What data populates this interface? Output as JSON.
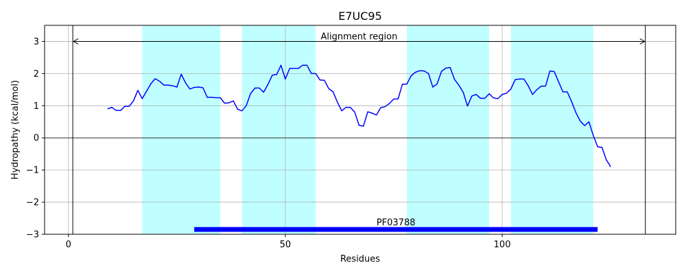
{
  "chart_data": {
    "type": "line",
    "title": "E7UC95",
    "xlabel": "Residues",
    "ylabel": "Hydropathy (kcal/mol)",
    "xlim": [
      -5.5,
      140
    ],
    "ylim": [
      -3,
      3.5
    ],
    "xticks": [
      0,
      50,
      100
    ],
    "yticks": [
      -3,
      -2,
      -1,
      0,
      1,
      2,
      3
    ],
    "ytick_labels": [
      "−3",
      "−2",
      "−1",
      "0",
      "1",
      "2",
      "3"
    ],
    "grid": true,
    "line_color": "#0000ff",
    "region_color": "#c0ffff",
    "domain_bar_color": "#0000ff",
    "series": [
      {
        "x": [
          9,
          10,
          11,
          12,
          13,
          14,
          15,
          16,
          17,
          18,
          19,
          20,
          21,
          22,
          23,
          24,
          25,
          26,
          27,
          28,
          29,
          30,
          31,
          32,
          33,
          34,
          35,
          36,
          37,
          38,
          39,
          40,
          41,
          42,
          43,
          44,
          45,
          46,
          47,
          48,
          49,
          50,
          51,
          52,
          53,
          54,
          55,
          56,
          57,
          58,
          59,
          60,
          61,
          62,
          63,
          64,
          65,
          66,
          67,
          68,
          69,
          70,
          71,
          72,
          73,
          74,
          75,
          76,
          77,
          78,
          79,
          80,
          81,
          82,
          83,
          84,
          85,
          86,
          87,
          88,
          89,
          90,
          91,
          92,
          93,
          94,
          95,
          96,
          97,
          98,
          99,
          100,
          101,
          102,
          103,
          104,
          105,
          106,
          107,
          108,
          109,
          110,
          111,
          112,
          113,
          114,
          115,
          116,
          117,
          118,
          119,
          120,
          121,
          122,
          123,
          124,
          125
        ],
        "y": [
          0.9,
          0.95,
          0.85,
          0.85,
          0.98,
          0.98,
          1.15,
          1.48,
          1.22,
          1.45,
          1.68,
          1.84,
          1.76,
          1.64,
          1.64,
          1.62,
          1.58,
          1.98,
          1.71,
          1.52,
          1.57,
          1.58,
          1.56,
          1.26,
          1.26,
          1.25,
          1.25,
          1.08,
          1.09,
          1.15,
          0.89,
          0.84,
          1.0,
          1.38,
          1.55,
          1.55,
          1.42,
          1.66,
          1.95,
          1.97,
          2.26,
          1.83,
          2.16,
          2.16,
          2.16,
          2.26,
          2.26,
          2.0,
          2.0,
          1.8,
          1.79,
          1.53,
          1.43,
          1.11,
          0.84,
          0.95,
          0.95,
          0.8,
          0.39,
          0.36,
          0.81,
          0.77,
          0.71,
          0.94,
          0.97,
          1.07,
          1.21,
          1.21,
          1.67,
          1.67,
          1.93,
          2.04,
          2.09,
          2.08,
          2.0,
          1.58,
          1.68,
          2.07,
          2.17,
          2.19,
          1.82,
          1.64,
          1.42,
          0.99,
          1.3,
          1.35,
          1.23,
          1.23,
          1.37,
          1.24,
          1.22,
          1.35,
          1.39,
          1.52,
          1.81,
          1.83,
          1.83,
          1.62,
          1.35,
          1.5,
          1.61,
          1.61,
          2.08,
          2.06,
          1.74,
          1.43,
          1.43,
          1.13,
          0.78,
          0.52,
          0.38,
          0.5,
          0.07,
          -0.28,
          -0.3,
          -0.68,
          -0.9
        ]
      }
    ],
    "highlight_regions": [
      [
        17,
        35
      ],
      [
        40,
        57
      ],
      [
        78,
        97
      ],
      [
        102,
        121
      ]
    ],
    "alignment_region": {
      "label": "Alignment region",
      "x_start": 1,
      "x_end": 133,
      "y": 3.0
    },
    "domain": {
      "label": "PF03788",
      "x_start": 29,
      "x_end": 122,
      "y": -2.85
    },
    "vlines": [
      1,
      133
    ],
    "hline": 0
  }
}
